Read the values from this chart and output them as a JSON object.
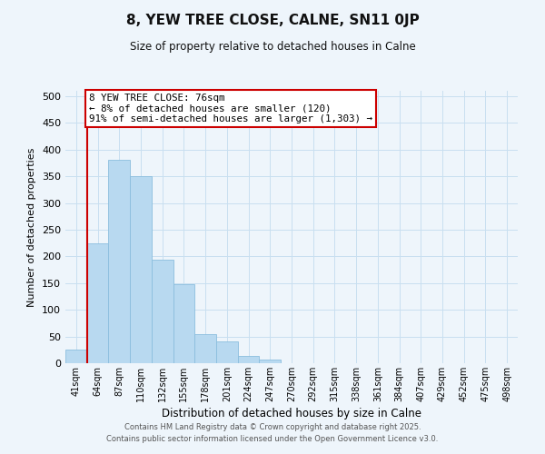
{
  "title": "8, YEW TREE CLOSE, CALNE, SN11 0JP",
  "subtitle": "Size of property relative to detached houses in Calne",
  "xlabel": "Distribution of detached houses by size in Calne",
  "ylabel": "Number of detached properties",
  "bar_labels": [
    "41sqm",
    "64sqm",
    "87sqm",
    "110sqm",
    "132sqm",
    "155sqm",
    "178sqm",
    "201sqm",
    "224sqm",
    "247sqm",
    "270sqm",
    "292sqm",
    "315sqm",
    "338sqm",
    "361sqm",
    "384sqm",
    "407sqm",
    "429sqm",
    "452sqm",
    "475sqm",
    "498sqm"
  ],
  "bar_values": [
    25,
    225,
    380,
    350,
    193,
    148,
    55,
    40,
    13,
    6,
    0,
    0,
    0,
    0,
    0,
    0,
    0,
    0,
    0,
    0,
    0
  ],
  "bar_color": "#b8d9f0",
  "bar_edge_color": "#8bbede",
  "grid_color": "#c8dff0",
  "background_color": "#eef5fb",
  "vline_color": "#cc0000",
  "annotation_title": "8 YEW TREE CLOSE: 76sqm",
  "annotation_line1": "← 8% of detached houses are smaller (120)",
  "annotation_line2": "91% of semi-detached houses are larger (1,303) →",
  "annotation_box_color": "#ffffff",
  "annotation_box_edge": "#cc0000",
  "ylim": [
    0,
    510
  ],
  "yticks": [
    0,
    50,
    100,
    150,
    200,
    250,
    300,
    350,
    400,
    450,
    500
  ],
  "footer1": "Contains HM Land Registry data © Crown copyright and database right 2025.",
  "footer2": "Contains public sector information licensed under the Open Government Licence v3.0."
}
